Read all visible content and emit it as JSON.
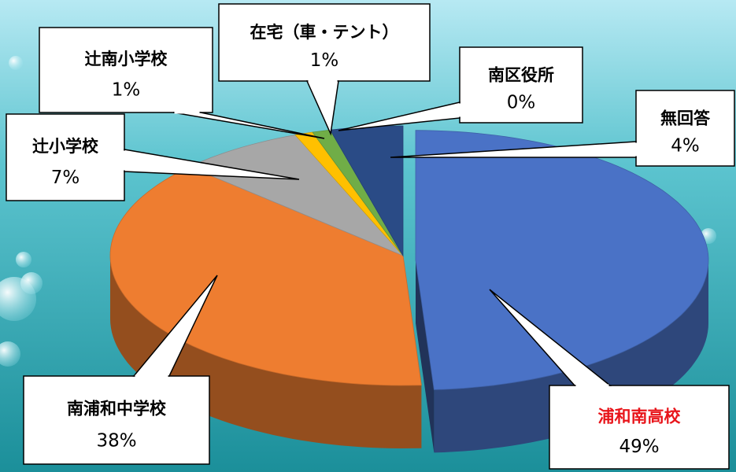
{
  "chart_data": {
    "type": "pie3d",
    "categories": [
      "浦和南高校",
      "南浦和中学校",
      "辻小学校",
      "辻南小学校",
      "在宅（車・テント）",
      "南区役所",
      "無回答"
    ],
    "values": [
      49,
      38,
      7,
      1,
      1,
      0,
      4
    ],
    "value_labels": [
      "49%",
      "38%",
      "7%",
      "1%",
      "1%",
      "0%",
      "4%"
    ],
    "colors": [
      "#4a72c6",
      "#ee7d30",
      "#a7a7a7",
      "#ffc000",
      "#70ad47",
      "#5b9bd5",
      "#2a4b86"
    ]
  }
}
